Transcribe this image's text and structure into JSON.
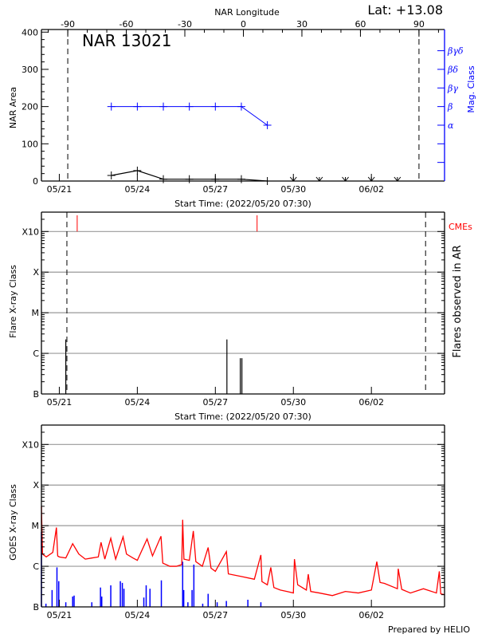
{
  "header": {
    "lat_label": "Lat: +13.08"
  },
  "footer": {
    "prepared_by": "Prepared by HELIO"
  },
  "colors": {
    "axis": "#000000",
    "grid": "#999999",
    "mag_class": "#0000ff",
    "cme": "#ff0000",
    "goes_long": "#ff0000",
    "goes_short": "#0000ff",
    "flare": "#000000"
  },
  "chart_data": [
    {
      "type": "line",
      "title": "NAR 13021",
      "top_axis_label": "NAR Longitude",
      "xlabel": "Start Time: (2022/05/20 07:30)",
      "ylabel": "NAR Area",
      "y2label": "Mag. Class",
      "xlim": [
        "05/20 07:30",
        "06/04 19:30"
      ],
      "ylim": [
        0,
        407
      ],
      "lon_lim": [
        -103.5,
        103.1
      ],
      "lon_ticks": [
        -90,
        -60,
        -30,
        0,
        30,
        60,
        90
      ],
      "lon_tick_labels": [
        "-90",
        "-60",
        "-30",
        "0",
        "30",
        "60",
        "90"
      ],
      "limb_longitudes": [
        -90,
        90
      ],
      "y_ticks": [
        0,
        100,
        200,
        300,
        400
      ],
      "y_tick_labels": [
        "0",
        "100",
        "200",
        "300",
        "400"
      ],
      "x_ticks": [
        "05/21 00:00",
        "05/24 00:00",
        "05/27 00:00",
        "05/30 00:00",
        "06/02 00:00"
      ],
      "x_tick_labels": [
        "05/21",
        "05/24",
        "05/27",
        "05/30",
        "06/02"
      ],
      "y2_ticks": [
        150,
        200,
        250,
        300,
        350
      ],
      "y2_tick_labels": [
        "α",
        "β",
        "βγ",
        "βδ",
        "βγδ"
      ],
      "area_series": [
        [
          "05/23 00:00",
          15
        ],
        [
          "05/24 00:00",
          28
        ],
        [
          "05/25 00:00",
          5
        ],
        [
          "05/26 00:00",
          5
        ],
        [
          "05/27 00:00",
          5
        ],
        [
          "05/28 00:00",
          5
        ],
        [
          "05/29 00:00",
          0
        ]
      ],
      "area_zero_markers": [
        "05/30 00:00",
        "05/31 00:00",
        "06/01 00:00",
        "06/02 00:00",
        "06/03 00:00"
      ],
      "mag_class_series": [
        [
          "05/23 00:00",
          "β"
        ],
        [
          "05/24 00:00",
          "β"
        ],
        [
          "05/25 00:00",
          "β"
        ],
        [
          "05/26 00:00",
          "β"
        ],
        [
          "05/27 00:00",
          "β"
        ],
        [
          "05/28 00:00",
          "β"
        ],
        [
          "05/29 00:00",
          "α"
        ]
      ]
    },
    {
      "type": "bar",
      "xlabel": "Start Time: (2022/05/20 07:30)",
      "ylabel": "Flare X-ray Class",
      "y2label": "Flares observed in AR",
      "cme_label": "CMEs",
      "xlim": [
        "05/20 07:30",
        "06/04 19:30"
      ],
      "ylim": [
        1e-07,
        0.003
      ],
      "y_scale": "log",
      "grid": true,
      "y_ticks": [
        1e-07,
        1e-06,
        1e-05,
        0.0001,
        0.001
      ],
      "y_tick_labels": [
        "B",
        "C",
        "M",
        "X",
        "X10"
      ],
      "x_ticks": [
        "05/21 00:00",
        "05/24 00:00",
        "05/27 00:00",
        "05/30 00:00",
        "06/02 00:00"
      ],
      "x_tick_labels": [
        "05/21",
        "05/24",
        "05/27",
        "05/30",
        "06/02"
      ],
      "limb_times": [
        "05/21 07:00",
        "06/04 02:00"
      ],
      "flares": [
        [
          "05/21 06:00",
          "C2.2"
        ],
        [
          "05/27 10:40",
          "C2.2"
        ],
        [
          "05/27 23:00",
          "B7.6"
        ],
        [
          "05/28 00:30",
          "B7.6"
        ]
      ],
      "cmes": [
        "05/21 16:30",
        "05/28 14:30"
      ]
    },
    {
      "type": "line",
      "ylabel": "GOES X-ray Class",
      "xlim": [
        "05/20 07:30",
        "06/04 19:30"
      ],
      "ylim": [
        1e-07,
        0.003
      ],
      "y_scale": "log",
      "grid": true,
      "y_ticks": [
        1e-07,
        1e-06,
        1e-05,
        0.0001,
        0.001
      ],
      "y_tick_labels": [
        "B",
        "C",
        "M",
        "X",
        "X10"
      ],
      "x_ticks": [
        "05/21 00:00",
        "05/24 00:00",
        "05/27 00:00",
        "05/30 00:00",
        "06/02 00:00"
      ],
      "x_tick_labels": [
        "05/21",
        "05/24",
        "05/27",
        "05/30",
        "06/02"
      ],
      "long_channel": [
        [
          "05/20 07:30",
          3e-05
        ],
        [
          "05/20 08:30",
          2e-06
        ],
        [
          "05/20 12:00",
          1.7e-06
        ],
        [
          "05/20 18:00",
          2.2e-06
        ],
        [
          "05/20 21:20",
          9e-06
        ],
        [
          "05/20 22:30",
          1.8e-06
        ],
        [
          "05/21 00:00",
          1.7e-06
        ],
        [
          "05/21 06:00",
          1.6e-06
        ],
        [
          "05/21 12:20",
          3.6e-06
        ],
        [
          "05/21 18:00",
          2e-06
        ],
        [
          "05/22 00:00",
          1.5e-06
        ],
        [
          "05/22 06:00",
          1.6e-06
        ],
        [
          "05/22 12:00",
          1.7e-06
        ],
        [
          "05/22 14:30",
          3.9e-06
        ],
        [
          "05/22 18:00",
          1.5e-06
        ],
        [
          "05/22 23:30",
          4.9e-06
        ],
        [
          "05/23 04:00",
          1.5e-06
        ],
        [
          "05/23 10:50",
          5.3e-06
        ],
        [
          "05/23 14:00",
          2e-06
        ],
        [
          "05/23 20:00",
          1.6e-06
        ],
        [
          "05/24 00:00",
          1.4e-06
        ],
        [
          "05/24 09:00",
          4.7e-06
        ],
        [
          "05/24 14:00",
          1.8e-06
        ],
        [
          "05/24 21:50",
          5.5e-06
        ],
        [
          "05/24 23:30",
          1.2e-06
        ],
        [
          "05/25 06:00",
          1e-06
        ],
        [
          "05/25 12:00",
          1e-06
        ],
        [
          "05/25 17:00",
          1.1e-06
        ],
        [
          "05/25 17:50",
          1.4e-05
        ],
        [
          "05/25 19:00",
          1.5e-06
        ],
        [
          "05/26 00:00",
          1.4e-06
        ],
        [
          "05/26 03:40",
          7.4e-06
        ],
        [
          "05/26 06:00",
          1.3e-06
        ],
        [
          "05/26 12:00",
          1e-06
        ],
        [
          "05/26 17:20",
          2.9e-06
        ],
        [
          "05/26 20:00",
          9e-07
        ],
        [
          "05/27 00:00",
          7.5e-07
        ],
        [
          "05/27 10:10",
          2.3e-06
        ],
        [
          "05/27 12:00",
          6.5e-07
        ],
        [
          "05/28 00:00",
          5.6e-07
        ],
        [
          "05/28 12:00",
          4.8e-07
        ],
        [
          "05/28 18:00",
          1.9e-06
        ],
        [
          "05/28 19:00",
          4.2e-07
        ],
        [
          "05/29 00:00",
          3.5e-07
        ],
        [
          "05/29 03:10",
          9.4e-07
        ],
        [
          "05/29 06:00",
          3e-07
        ],
        [
          "05/29 12:00",
          2.6e-07
        ],
        [
          "05/29 18:00",
          2.4e-07
        ],
        [
          "05/30 00:00",
          2.2e-07
        ],
        [
          "05/30 01:00",
          1.5e-06
        ],
        [
          "05/30 04:00",
          3.5e-07
        ],
        [
          "05/30 12:00",
          2.6e-07
        ],
        [
          "05/30 13:45",
          6.4e-07
        ],
        [
          "05/30 16:00",
          2.4e-07
        ],
        [
          "05/31 00:00",
          2.2e-07
        ],
        [
          "05/31 12:00",
          1.9e-07
        ],
        [
          "06/01 00:00",
          2.4e-07
        ],
        [
          "06/01 12:00",
          2.2e-07
        ],
        [
          "06/02 00:00",
          2.6e-07
        ],
        [
          "06/02 05:00",
          1.3e-06
        ],
        [
          "06/02 08:00",
          4e-07
        ],
        [
          "06/02 12:00",
          3.8e-07
        ],
        [
          "06/03 00:00",
          2.8e-07
        ],
        [
          "06/03 00:45",
          8.7e-07
        ],
        [
          "06/03 04:00",
          2.7e-07
        ],
        [
          "06/03 12:00",
          2.2e-07
        ],
        [
          "06/04 00:00",
          2.8e-07
        ],
        [
          "06/04 12:00",
          2.2e-07
        ],
        [
          "06/04 14:40",
          7.5e-07
        ],
        [
          "06/04 16:00",
          2.1e-07
        ],
        [
          "06/04 19:30",
          2e-07
        ]
      ],
      "short_channel_peaks": [
        [
          "05/20 07:30",
          7e-06
        ],
        [
          "05/20 11:40",
          1.2e-07
        ],
        [
          "05/20 17:20",
          2.6e-07
        ],
        [
          "05/20 21:50",
          9.4e-07
        ],
        [
          "05/20 23:30",
          4.3e-07
        ],
        [
          "05/21 06:00",
          1.3e-07
        ],
        [
          "05/21 12:20",
          1.8e-07
        ],
        [
          "05/21 13:40",
          1.9e-07
        ],
        [
          "05/22 06:00",
          1.3e-07
        ],
        [
          "05/22 14:00",
          3e-07
        ],
        [
          "05/22 15:10",
          1.8e-07
        ],
        [
          "05/22 23:30",
          3.4e-07
        ],
        [
          "05/23 08:20",
          4.3e-07
        ],
        [
          "05/23 10:10",
          3.9e-07
        ],
        [
          "05/23 11:40",
          2.8e-07
        ],
        [
          "05/24 06:00",
          1.7e-07
        ],
        [
          "05/24 08:10",
          3.4e-07
        ],
        [
          "05/24 11:40",
          2.8e-07
        ],
        [
          "05/24 22:10",
          4.5e-07
        ],
        [
          "05/25 17:50",
          1.3e-06
        ],
        [
          "05/25 18:50",
          2.6e-07
        ],
        [
          "05/25 22:40",
          1.3e-07
        ],
        [
          "05/26 02:30",
          2.6e-07
        ],
        [
          "05/26 04:10",
          1.1e-06
        ],
        [
          "05/26 12:20",
          1.2e-07
        ],
        [
          "05/26 17:20",
          2.1e-07
        ],
        [
          "05/27 01:40",
          1.3e-07
        ],
        [
          "05/27 10:10",
          1.4e-07
        ],
        [
          "05/28 06:00",
          1.5e-07
        ],
        [
          "05/28 18:00",
          1.3e-07
        ]
      ]
    }
  ]
}
